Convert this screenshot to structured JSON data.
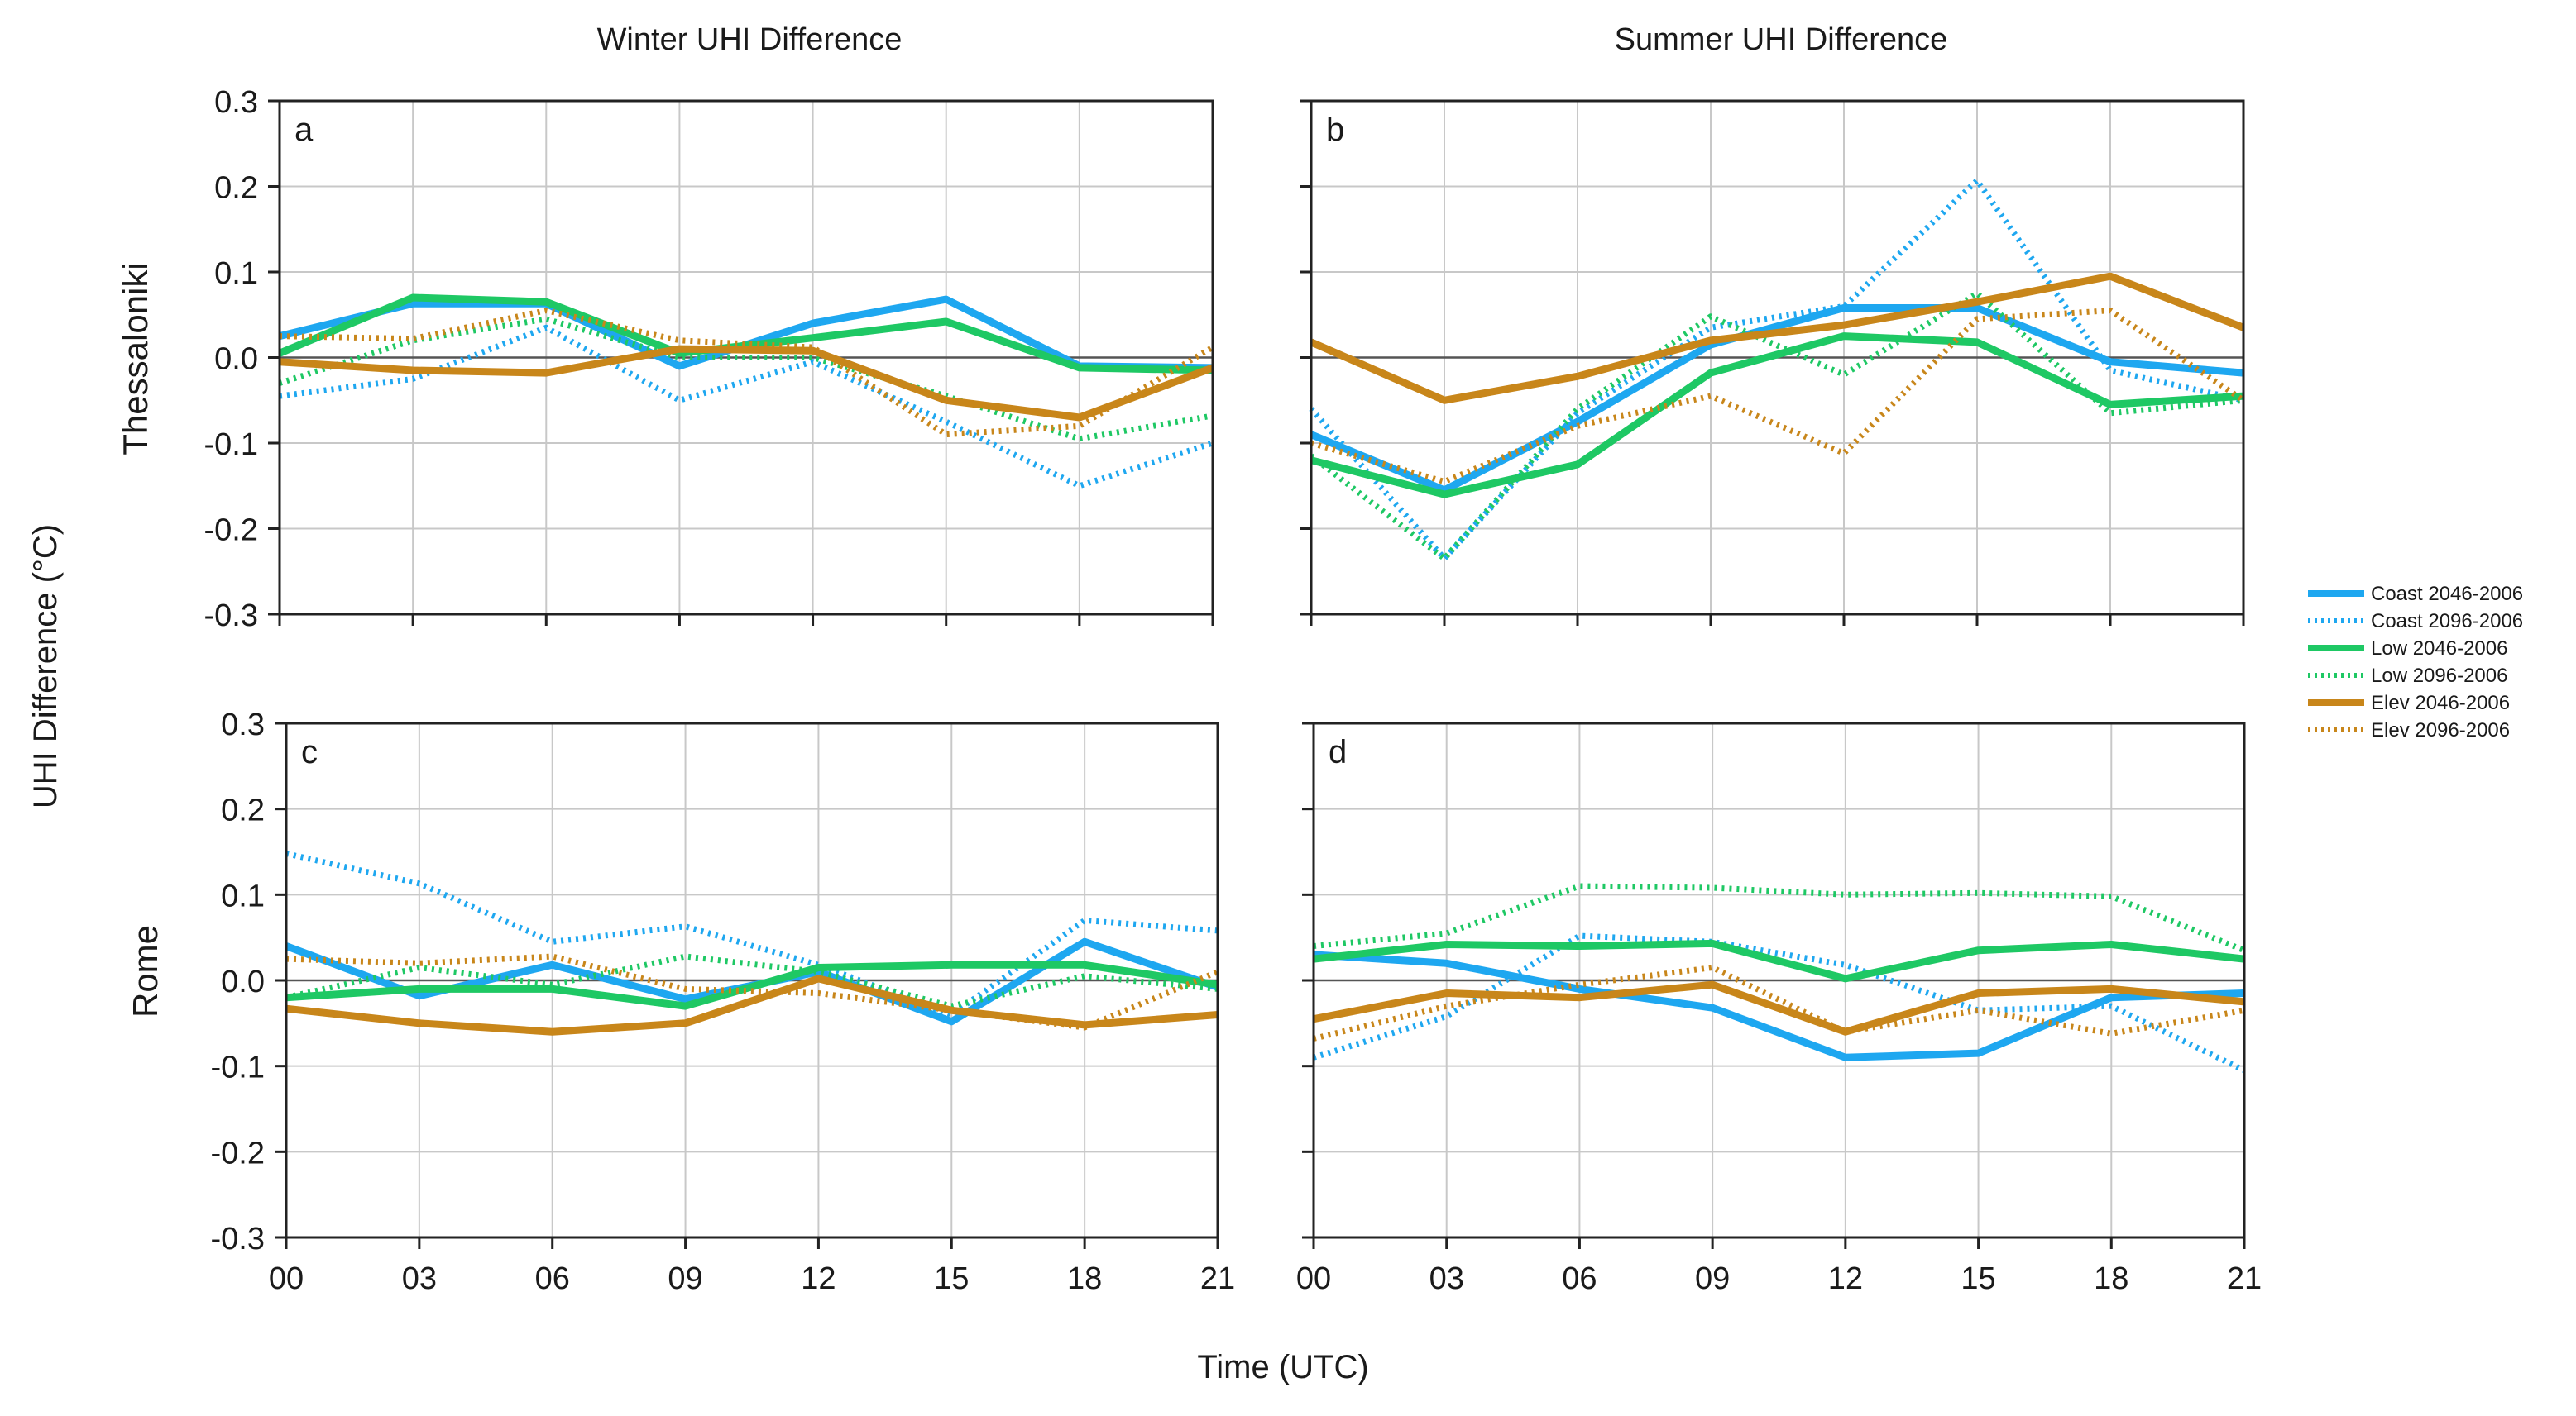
{
  "figure": {
    "col_titles": [
      "Winter UHI Difference",
      "Summer UHI Difference"
    ],
    "row_labels": [
      "Thessaloniki",
      "Rome"
    ],
    "ylabel": "UHI Difference (°C)",
    "xlabel": "Time (UTC)"
  },
  "legend": [
    {
      "name": "Coast 2046-2006",
      "color": "#1ea7f0",
      "style": "solid"
    },
    {
      "name": "Coast 2096-2006",
      "color": "#1ea7f0",
      "style": "dotted"
    },
    {
      "name": "Low 2046-2006",
      "color": "#1ec864",
      "style": "solid"
    },
    {
      "name": "Low 2096-2006",
      "color": "#1ec864",
      "style": "dotted"
    },
    {
      "name": "Elev 2046-2006",
      "color": "#c8861a",
      "style": "solid"
    },
    {
      "name": "Elev 2096-2006",
      "color": "#c8861a",
      "style": "dotted"
    }
  ],
  "chart_data": [
    {
      "type": "line",
      "panel": "a",
      "title": "Winter UHI Difference",
      "row": "Thessaloniki",
      "xlabel": "Time (UTC)",
      "ylabel": "UHI Difference (°C)",
      "categories": [
        "00",
        "03",
        "06",
        "09",
        "12",
        "15",
        "18",
        "21"
      ],
      "yticks": [
        "0.3",
        "0.2",
        "0.1",
        "0.0",
        "-0.1",
        "-0.2",
        "-0.3"
      ],
      "ylim": [
        -0.3,
        0.3
      ],
      "grid": true,
      "series": [
        {
          "name": "Coast 2046-2006",
          "values": [
            0.025,
            0.063,
            0.063,
            -0.01,
            0.04,
            0.068,
            -0.01,
            -0.012
          ]
        },
        {
          "name": "Coast 2096-2006",
          "values": [
            -0.045,
            -0.025,
            0.035,
            -0.05,
            -0.005,
            -0.075,
            -0.15,
            -0.1
          ]
        },
        {
          "name": "Low 2046-2006",
          "values": [
            0.005,
            0.07,
            0.065,
            0.005,
            0.023,
            0.042,
            -0.012,
            -0.015
          ]
        },
        {
          "name": "Low 2096-2006",
          "values": [
            -0.03,
            0.02,
            0.045,
            0.0,
            0.0,
            -0.045,
            -0.095,
            -0.068
          ]
        },
        {
          "name": "Elev 2046-2006",
          "values": [
            -0.005,
            -0.015,
            -0.018,
            0.01,
            0.008,
            -0.05,
            -0.07,
            -0.012
          ]
        },
        {
          "name": "Elev 2096-2006",
          "values": [
            0.025,
            0.022,
            0.055,
            0.02,
            0.012,
            -0.09,
            -0.08,
            0.012
          ]
        }
      ]
    },
    {
      "type": "line",
      "panel": "b",
      "title": "Summer UHI Difference",
      "row": "Thessaloniki",
      "xlabel": "Time (UTC)",
      "ylabel": "UHI Difference (°C)",
      "categories": [
        "00",
        "03",
        "06",
        "09",
        "12",
        "15",
        "18",
        "21"
      ],
      "yticks": [
        "0.3",
        "0.2",
        "0.1",
        "0.0",
        "-0.1",
        "-0.2",
        "-0.3"
      ],
      "ylim": [
        -0.3,
        0.3
      ],
      "grid": true,
      "series": [
        {
          "name": "Coast 2046-2006",
          "values": [
            -0.09,
            -0.155,
            -0.075,
            0.015,
            0.058,
            0.058,
            -0.005,
            -0.018
          ]
        },
        {
          "name": "Coast 2096-2006",
          "values": [
            -0.06,
            -0.235,
            -0.065,
            0.035,
            0.06,
            0.207,
            -0.015,
            -0.05
          ]
        },
        {
          "name": "Low 2046-2006",
          "values": [
            -0.12,
            -0.16,
            -0.125,
            -0.018,
            0.025,
            0.018,
            -0.055,
            -0.045
          ]
        },
        {
          "name": "Low 2096-2006",
          "values": [
            -0.115,
            -0.235,
            -0.06,
            0.048,
            -0.02,
            0.075,
            -0.065,
            -0.05
          ]
        },
        {
          "name": "Elev 2046-2006",
          "values": [
            0.018,
            -0.05,
            -0.022,
            0.02,
            0.038,
            0.065,
            0.095,
            0.035
          ]
        },
        {
          "name": "Elev 2096-2006",
          "values": [
            -0.1,
            -0.145,
            -0.08,
            -0.045,
            -0.112,
            0.045,
            0.055,
            -0.05
          ]
        }
      ]
    },
    {
      "type": "line",
      "panel": "c",
      "title": "Winter UHI Difference",
      "row": "Rome",
      "xlabel": "Time (UTC)",
      "ylabel": "UHI Difference (°C)",
      "categories": [
        "00",
        "03",
        "06",
        "09",
        "12",
        "15",
        "18",
        "21"
      ],
      "yticks": [
        "0.3",
        "0.2",
        "0.1",
        "0.0",
        "-0.1",
        "-0.2",
        "-0.3"
      ],
      "ylim": [
        -0.3,
        0.3
      ],
      "grid": true,
      "series": [
        {
          "name": "Coast 2046-2006",
          "values": [
            0.04,
            -0.018,
            0.018,
            -0.022,
            0.01,
            -0.048,
            0.045,
            -0.008
          ]
        },
        {
          "name": "Coast 2096-2006",
          "values": [
            0.148,
            0.113,
            0.045,
            0.063,
            0.018,
            -0.04,
            0.07,
            0.058
          ]
        },
        {
          "name": "Low 2046-2006",
          "values": [
            -0.02,
            -0.01,
            -0.01,
            -0.03,
            0.015,
            0.018,
            0.018,
            -0.005
          ]
        },
        {
          "name": "Low 2096-2006",
          "values": [
            -0.02,
            0.015,
            -0.005,
            0.028,
            0.01,
            -0.03,
            0.005,
            -0.01
          ]
        },
        {
          "name": "Elev 2046-2006",
          "values": [
            -0.033,
            -0.05,
            -0.06,
            -0.05,
            0.002,
            -0.035,
            -0.052,
            -0.04
          ]
        },
        {
          "name": "Elev 2096-2006",
          "values": [
            0.025,
            0.02,
            0.028,
            -0.01,
            -0.015,
            -0.035,
            -0.055,
            0.01
          ]
        }
      ]
    },
    {
      "type": "line",
      "panel": "d",
      "title": "Summer UHI Difference",
      "row": "Rome",
      "xlabel": "Time (UTC)",
      "ylabel": "UHI Difference (°C)",
      "categories": [
        "00",
        "03",
        "06",
        "09",
        "12",
        "15",
        "18",
        "21"
      ],
      "yticks": [
        "0.3",
        "0.2",
        "0.1",
        "0.0",
        "-0.1",
        "-0.2",
        "-0.3"
      ],
      "ylim": [
        -0.3,
        0.3
      ],
      "grid": true,
      "series": [
        {
          "name": "Coast 2046-2006",
          "values": [
            0.03,
            0.02,
            -0.01,
            -0.032,
            -0.09,
            -0.085,
            -0.02,
            -0.015
          ]
        },
        {
          "name": "Coast 2096-2006",
          "values": [
            -0.09,
            -0.042,
            0.052,
            0.045,
            0.018,
            -0.035,
            -0.03,
            -0.105
          ]
        },
        {
          "name": "Low 2046-2006",
          "values": [
            0.025,
            0.042,
            0.04,
            0.043,
            0.002,
            0.035,
            0.042,
            0.025
          ]
        },
        {
          "name": "Low 2096-2006",
          "values": [
            0.04,
            0.055,
            0.11,
            0.108,
            0.1,
            0.102,
            0.098,
            0.035
          ]
        },
        {
          "name": "Elev 2046-2006",
          "values": [
            -0.045,
            -0.015,
            -0.02,
            -0.005,
            -0.06,
            -0.015,
            -0.01,
            -0.025
          ]
        },
        {
          "name": "Elev 2096-2006",
          "values": [
            -0.068,
            -0.03,
            -0.005,
            0.015,
            -0.06,
            -0.035,
            -0.062,
            -0.035
          ]
        }
      ]
    }
  ]
}
